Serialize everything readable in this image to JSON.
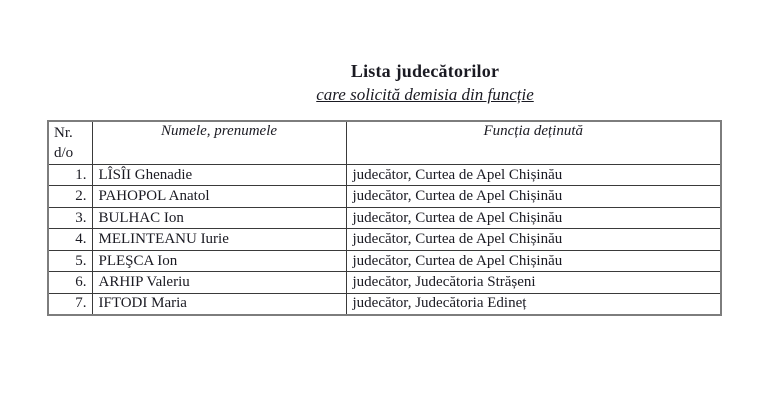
{
  "document": {
    "title": "Lista judecătorilor",
    "subtitle": "care solicită demisia din funcție"
  },
  "table": {
    "headers": {
      "nr_line1": "Nr.",
      "nr_line2": "d/o",
      "name": "Numele, prenumele",
      "function": "Funcția deținută"
    },
    "rows": [
      {
        "nr": "1.",
        "name": "LÎSÎI Ghenadie",
        "function": "judecător, Curtea de Apel Chișinău"
      },
      {
        "nr": "2.",
        "name": "PAHOPOL Anatol",
        "function": "judecător, Curtea de Apel Chișinău"
      },
      {
        "nr": "3.",
        "name": "BULHAC Ion",
        "function": "judecător, Curtea de Apel Chișinău"
      },
      {
        "nr": "4.",
        "name": "MELINTEANU Iurie",
        "function": "judecător, Curtea de Apel Chișinău"
      },
      {
        "nr": "5.",
        "name": "PLEŞCA Ion",
        "function": "judecător, Curtea de Apel Chișinău"
      },
      {
        "nr": "6.",
        "name": "ARHIP Valeriu",
        "function": "judecător, Judecătoria Strășeni"
      },
      {
        "nr": "7.",
        "name": "IFTODI Maria",
        "function": "judecător, Judecătoria Edineț"
      }
    ]
  },
  "colors": {
    "background": "#ffffff",
    "text": "#1a1a22",
    "inner_border": "#3a3a3a",
    "outer_border": "#7d7d7d"
  }
}
